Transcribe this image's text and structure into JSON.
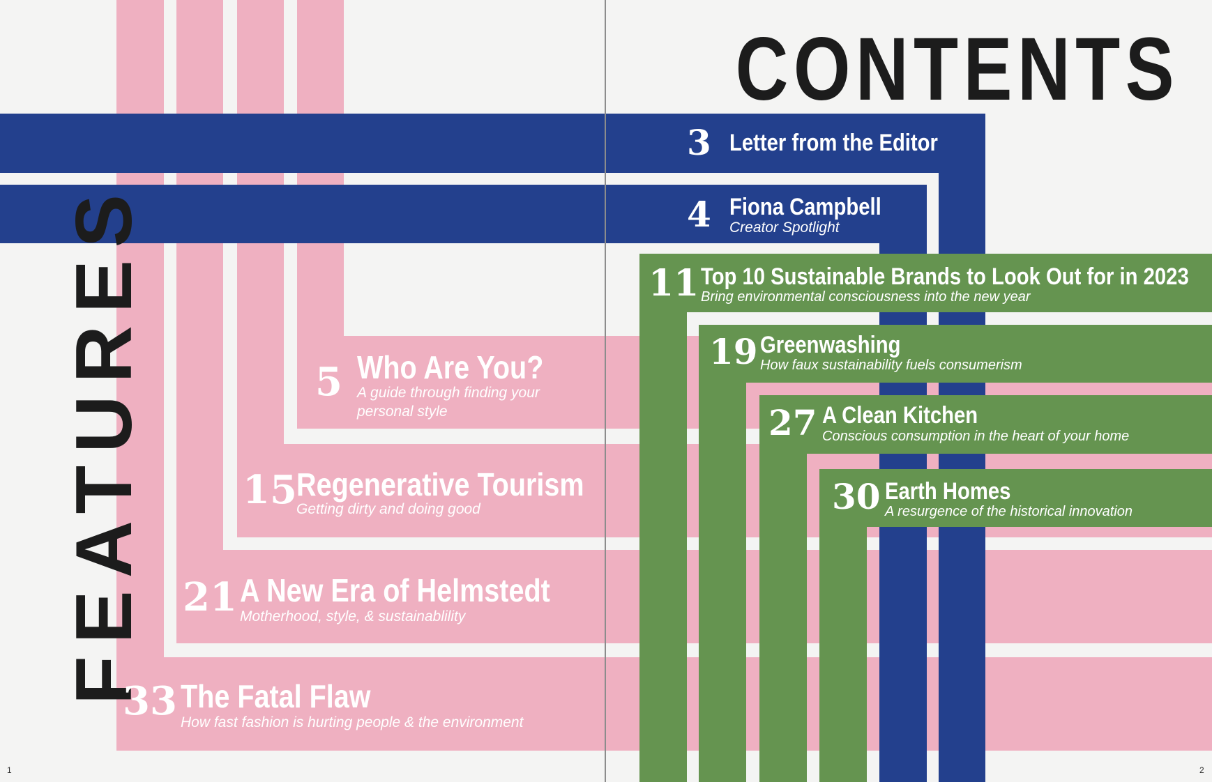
{
  "page_title": "CONTENTS",
  "section_label": "FEATURES",
  "page_numbers": {
    "left": "1",
    "right": "2"
  },
  "colors": {
    "pink": "#efb0c1",
    "blue": "#23408d",
    "green": "#659450",
    "background": "#f4f4f3",
    "text": "#1c1c1c"
  },
  "entries": [
    {
      "page": "3",
      "title": "Letter from the Editor",
      "subtitle": ""
    },
    {
      "page": "4",
      "title": "Fiona Campbell",
      "subtitle": "Creator Spotlight"
    },
    {
      "page": "11",
      "title": "Top 10 Sustainable Brands to Look Out for in 2023",
      "subtitle": "Bring environmental consciousness into the new year"
    },
    {
      "page": "19",
      "title": "Greenwashing",
      "subtitle": "How faux sustainability fuels consumerism"
    },
    {
      "page": "27",
      "title": "A Clean Kitchen",
      "subtitle": "Conscious consumption in the heart of your home"
    },
    {
      "page": "30",
      "title": "Earth Homes",
      "subtitle": "A resurgence of the historical innovation"
    },
    {
      "page": "5",
      "title": "Who Are You?",
      "subtitle": "A guide through finding your",
      "subtitle2": "personal style"
    },
    {
      "page": "15",
      "title": "Regenerative Tourism",
      "subtitle": "Getting dirty and doing good"
    },
    {
      "page": "21",
      "title": "A New Era of Helmstedt",
      "subtitle": "Motherhood, style, & sustainablility"
    },
    {
      "page": "33",
      "title": "The Fatal Flaw",
      "subtitle": "How fast fashion is hurting people & the environment"
    }
  ]
}
